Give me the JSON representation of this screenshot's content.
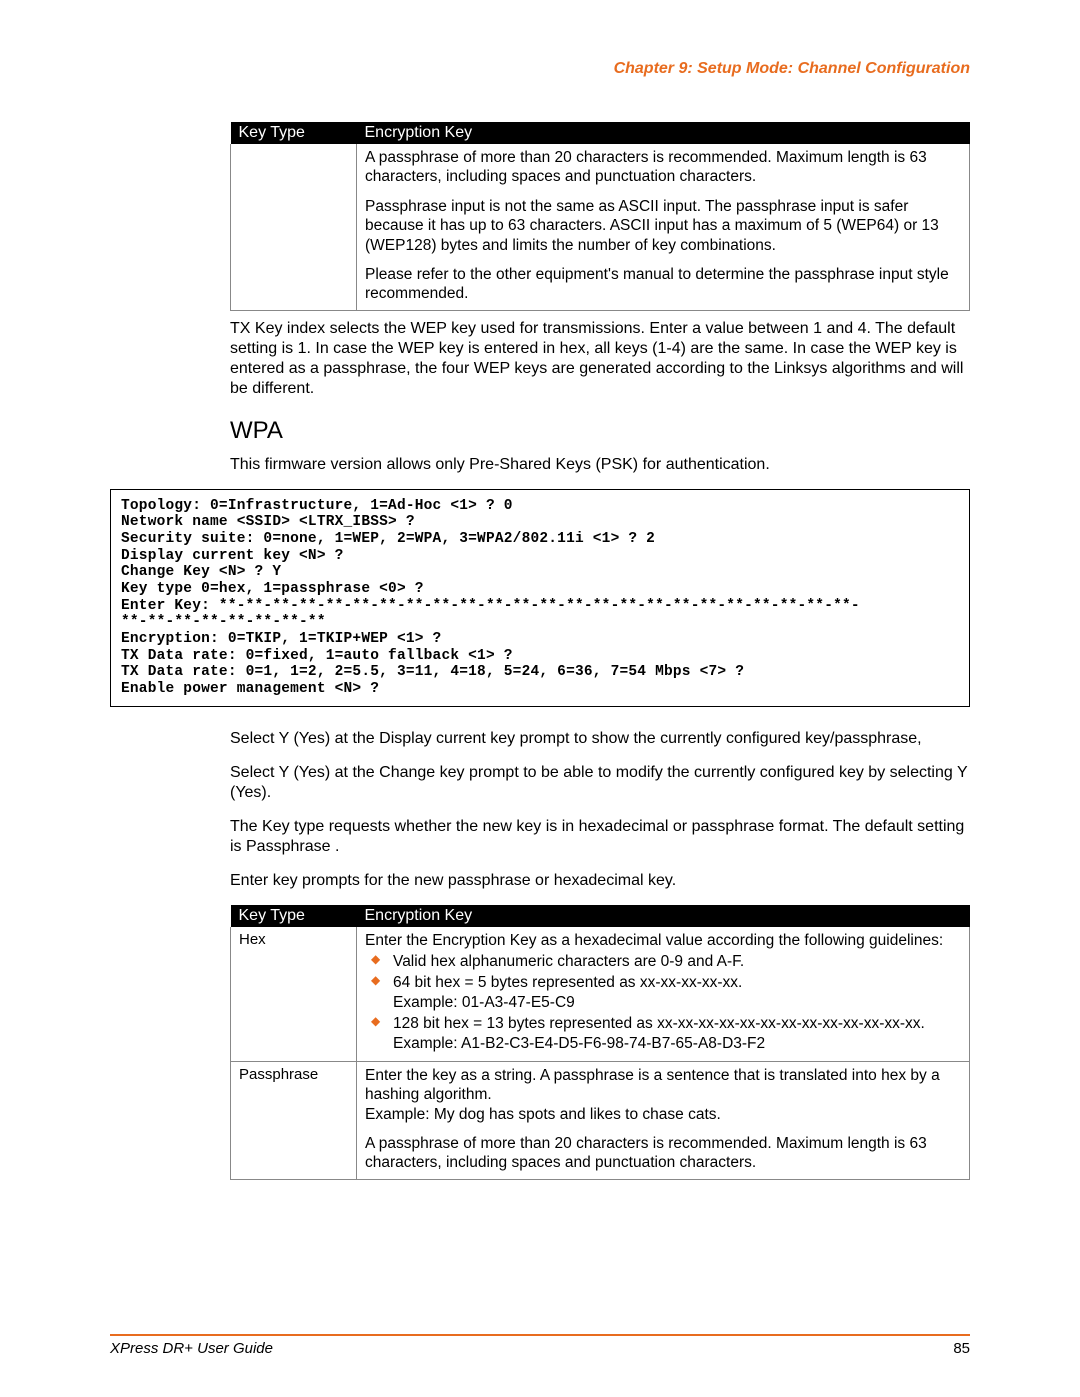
{
  "chapter_header": "Chapter 9: Setup Mode: Channel Configuration",
  "table1": {
    "headers": [
      "Key Type",
      "Encryption Key"
    ],
    "row": {
      "col1": "",
      "para1": "A passphrase of more than 20 characters is recommended. Maximum length is 63 characters, including spaces and punctuation characters.",
      "para2": "Passphrase input is not the same as ASCII input. The passphrase input is safer because it has up to 63 characters. ASCII input has a maximum of 5 (WEP64) or 13 (WEP128) bytes and limits the number of key combinations.",
      "para3": "Please refer to the other equipment's manual to determine the passphrase input style recommended."
    }
  },
  "txkey_para": "TX Key index  selects the WEP key used for transmissions. Enter a value between 1 and 4. The default setting is 1. In case the WEP key is entered in hex, all keys (1-4) are the same. In case the WEP key is entered as a passphrase, the four WEP keys are generated according to the Linksys algorithms and will be different.",
  "wpa_heading": "WPA",
  "wpa_intro": "This firmware version allows only Pre-Shared Keys (PSK)   for authentication.",
  "terminal_text": "Topology: 0=Infrastructure, 1=Ad-Hoc <1> ? 0\nNetwork name <SSID> <LTRX_IBSS> ?\nSecurity suite: 0=none, 1=WEP, 2=WPA, 3=WPA2/802.11i <1> ? 2\nDisplay current key <N> ?\nChange Key <N> ? Y\nKey type 0=hex, 1=passphrase <0> ?\nEnter Key: **-**-**-**-**-**-**-**-**-**-**-**-**-**-**-**-**-**-**-**-**-**-**-**-\n**-**-**-**-**-**-**-**\nEncryption: 0=TKIP, 1=TKIP+WEP <1> ?\nTX Data rate: 0=fixed, 1=auto fallback <1> ?\nTX Data rate: 0=1, 1=2, 2=5.5, 3=11, 4=18, 5=24, 6=36, 7=54 Mbps <7> ?\nEnable power management <N> ?",
  "para_display": "Select Y (Yes) at the Display current key    prompt to show the currently configured key/passphrase,",
  "para_change": "Select Y (Yes) at the Change key  prompt to be able to modify the currently configured key by selecting Y (Yes).",
  "para_keytype": "The Key type  requests whether the new key is in hexadecimal or passphrase format. The default setting is Passphrase .",
  "para_enterkey": "Enter key  prompts for the new passphrase or hexadecimal key.",
  "table2": {
    "headers": [
      "Key Type",
      "Encryption Key"
    ],
    "rows": {
      "hex": {
        "label": "Hex",
        "intro": "Enter the Encryption Key   as a hexadecimal value according the following guidelines:",
        "b1": "Valid hex alphanumeric characters are 0-9 and A-F.",
        "b2a": "64 bit hex = 5 bytes represented as xx-xx-xx-xx-xx.",
        "b2b": "Example: 01-A3-47-E5-C9",
        "b3a": "128 bit hex = 13 bytes represented as xx-xx-xx-xx-xx-xx-xx-xx-xx-xx-xx-xx-xx.",
        "b3b": "Example: A1-B2-C3-E4-D5-F6-98-74-B7-65-A8-D3-F2"
      },
      "passphrase": {
        "label": "Passphrase",
        "p1": "Enter the key as a string. A passphrase is a sentence that is translated into hex by a hashing algorithm.",
        "p2": "Example: My dog has spots and likes to chase cats.",
        "p3": "A passphrase of more than 20 characters is recommended. Maximum length is 63 characters, including spaces and punctuation characters."
      }
    }
  },
  "footer": {
    "title": "XPress DR+ User Guide",
    "page": "85"
  }
}
